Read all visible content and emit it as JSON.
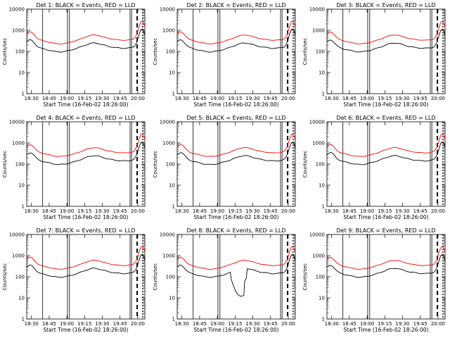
{
  "chart_data": [
    {
      "type": "line",
      "title": "Det 1: BLACK = Events, RED = LLD",
      "xlabel": "Start Time (16-Feb-02 18:26:00)",
      "ylabel": "Counts/sec",
      "yscale": "log",
      "ylim": [
        1,
        10000
      ],
      "yticks": [
        "1",
        "10",
        "100",
        "1000",
        "10000"
      ],
      "xticks": [
        "18:30",
        "18:45",
        "19:00",
        "19:15",
        "19:30",
        "19:45",
        "20:00"
      ],
      "series": [
        {
          "color": "#ff0000"
        },
        {
          "color": "#000000"
        }
      ]
    },
    {
      "type": "line",
      "title": "Det 2: BLACK = Events, RED = LLD",
      "xlabel": "Start Time (16-Feb-02 18:26:00)",
      "ylabel": "Counts/sec",
      "yscale": "log",
      "ylim": [
        1,
        10000
      ],
      "yticks": [
        "1",
        "10",
        "100",
        "1000",
        "10000"
      ],
      "xticks": [
        "18:30",
        "18:45",
        "19:00",
        "19:15",
        "19:30",
        "19:45",
        "20:00"
      ],
      "series": [
        {
          "color": "#ff0000"
        },
        {
          "color": "#000000"
        }
      ]
    },
    {
      "type": "line",
      "title": "Det 3: BLACK = Events, RED = LLD",
      "xlabel": "Start Time (16-Feb-02 18:26:00)",
      "ylabel": "Counts/sec",
      "yscale": "log",
      "ylim": [
        1,
        10000
      ],
      "yticks": [
        "1",
        "10",
        "100",
        "1000",
        "10000"
      ],
      "xticks": [
        "18:30",
        "18:45",
        "19:00",
        "19:15",
        "19:30",
        "19:45",
        "20:00"
      ],
      "series": [
        {
          "color": "#ff0000"
        },
        {
          "color": "#000000"
        }
      ]
    },
    {
      "type": "line",
      "title": "Det 4: BLACK = Events, RED = LLD",
      "xlabel": "Start Time (16-Feb-02 18:26:00)",
      "ylabel": "Counts/sec",
      "yscale": "log",
      "ylim": [
        1,
        10000
      ],
      "yticks": [
        "1",
        "10",
        "100",
        "1000",
        "10000"
      ],
      "xticks": [
        "18:30",
        "18:45",
        "19:00",
        "19:15",
        "19:30",
        "19:45",
        "20:00"
      ],
      "series": [
        {
          "color": "#ff0000"
        },
        {
          "color": "#000000"
        }
      ]
    },
    {
      "type": "line",
      "title": "Det 5: BLACK = Events, RED = LLD",
      "xlabel": "Start Time (16-Feb-02 18:26:00)",
      "ylabel": "Counts/sec",
      "yscale": "log",
      "ylim": [
        1,
        10000
      ],
      "yticks": [
        "1",
        "10",
        "100",
        "1000",
        "10000"
      ],
      "xticks": [
        "18:30",
        "18:45",
        "19:00",
        "19:15",
        "19:30",
        "19:45",
        "20:00"
      ],
      "series": [
        {
          "color": "#ff0000"
        },
        {
          "color": "#000000"
        }
      ]
    },
    {
      "type": "line",
      "title": "Det 6: BLACK = Events, RED = LLD",
      "xlabel": "Start Time (16-Feb-02 18:26:00)",
      "ylabel": "Counts/sec",
      "yscale": "log",
      "ylim": [
        1,
        10000
      ],
      "yticks": [
        "1",
        "10",
        "100",
        "1000",
        "10000"
      ],
      "xticks": [
        "18:30",
        "18:45",
        "19:00",
        "19:15",
        "19:30",
        "19:45",
        "20:00"
      ],
      "series": [
        {
          "color": "#ff0000"
        },
        {
          "color": "#000000"
        }
      ]
    },
    {
      "type": "line",
      "title": "Det 7: BLACK = Events, RED = LLD",
      "xlabel": "Start Time (16-Feb-02 18:26:00)",
      "ylabel": "Counts/sec",
      "yscale": "log",
      "ylim": [
        1,
        10000
      ],
      "yticks": [
        "1",
        "10",
        "100",
        "1000",
        "10000"
      ],
      "xticks": [
        "18:30",
        "18:45",
        "19:00",
        "19:15",
        "19:30",
        "19:45",
        "20:00"
      ],
      "series": [
        {
          "color": "#ff0000"
        },
        {
          "color": "#000000"
        }
      ]
    },
    {
      "type": "line",
      "title": "Det 8: BLACK = Events, RED = LLD",
      "xlabel": "Start Time (16-Feb-02 18:26:00)",
      "ylabel": "Counts/sec",
      "yscale": "log",
      "ylim": [
        1,
        10000
      ],
      "yticks": [
        "1",
        "10",
        "100",
        "1000",
        "10000"
      ],
      "xticks": [
        "18:30",
        "18:45",
        "19:00",
        "19:15",
        "19:30",
        "19:45",
        "20:00"
      ],
      "series": [
        {
          "color": "#ff0000"
        },
        {
          "color": "#000000"
        }
      ]
    },
    {
      "type": "line",
      "title": "Det 9: BLACK = Events, RED = LLD",
      "xlabel": "Start Time (16-Feb-02 18:26:00)",
      "ylabel": "Counts/sec",
      "yscale": "log",
      "ylim": [
        1,
        10000
      ],
      "yticks": [
        "1",
        "10",
        "100",
        "1000",
        "10000"
      ],
      "xticks": [
        "18:30",
        "18:45",
        "19:00",
        "19:15",
        "19:30",
        "19:45",
        "20:00"
      ],
      "series": [
        {
          "color": "#ff0000"
        },
        {
          "color": "#000000"
        }
      ]
    }
  ]
}
